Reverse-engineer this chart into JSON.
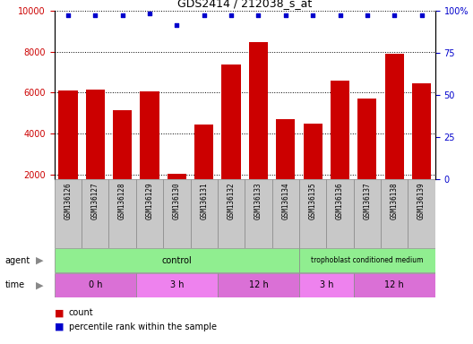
{
  "title": "GDS2414 / 212038_s_at",
  "samples": [
    "GSM136126",
    "GSM136127",
    "GSM136128",
    "GSM136129",
    "GSM136130",
    "GSM136131",
    "GSM136132",
    "GSM136133",
    "GSM136134",
    "GSM136135",
    "GSM136136",
    "GSM136137",
    "GSM136138",
    "GSM136139"
  ],
  "counts": [
    6100,
    6150,
    5150,
    6050,
    2050,
    4450,
    7350,
    8450,
    4700,
    4500,
    6600,
    5700,
    7900,
    6450
  ],
  "percentile": [
    97,
    97,
    97,
    98,
    91,
    97,
    97,
    97,
    97,
    97,
    97,
    97,
    97,
    97
  ],
  "bar_color": "#cc0000",
  "dot_color": "#0000cc",
  "ylim_left": [
    1800,
    10000
  ],
  "ylim_right": [
    0,
    100
  ],
  "yticks_left": [
    2000,
    4000,
    6000,
    8000,
    10000
  ],
  "yticks_right": [
    0,
    25,
    50,
    75,
    100
  ],
  "agent_colors": [
    "#90ee90",
    "#90ee90"
  ],
  "time_colors": [
    "#da70d6",
    "#ee82ee",
    "#da70d6",
    "#ee82ee",
    "#da70d6"
  ],
  "legend_count_color": "#cc0000",
  "legend_dot_color": "#0000cc",
  "tick_area_color": "#c8c8c8"
}
